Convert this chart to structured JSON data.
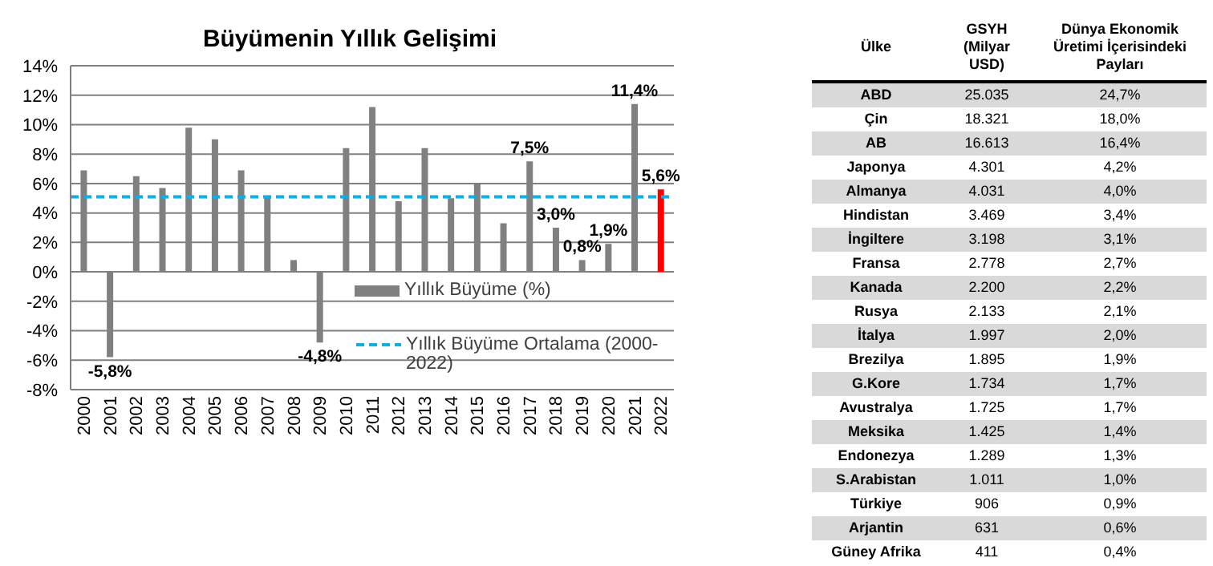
{
  "chart_data": [
    {
      "type": "bar",
      "title": "Büyümenin Yıllık Gelişimi",
      "categories": [
        "2000",
        "2001",
        "2002",
        "2003",
        "2004",
        "2005",
        "2006",
        "2007",
        "2008",
        "2009",
        "2010",
        "2011",
        "2012",
        "2013",
        "2014",
        "2015",
        "2016",
        "2017",
        "2018",
        "2019",
        "2020",
        "2021",
        "2022"
      ],
      "series": [
        {
          "name": "Yıllık Büyüme (%)",
          "color": "#808080",
          "colors": [
            "#808080",
            "#808080",
            "#808080",
            "#808080",
            "#808080",
            "#808080",
            "#808080",
            "#808080",
            "#808080",
            "#808080",
            "#808080",
            "#808080",
            "#808080",
            "#808080",
            "#808080",
            "#808080",
            "#808080",
            "#808080",
            "#808080",
            "#808080",
            "#808080",
            "#808080",
            "#ff0000"
          ],
          "values": [
            6.9,
            -5.8,
            6.5,
            5.7,
            9.8,
            9.0,
            6.9,
            5.1,
            0.8,
            -4.8,
            8.4,
            11.2,
            4.8,
            8.4,
            5.0,
            6.0,
            3.3,
            7.5,
            3.0,
            0.8,
            1.9,
            11.4,
            5.6
          ],
          "value_labels": [
            null,
            "-5,8%",
            null,
            null,
            null,
            null,
            null,
            null,
            null,
            "-4,8%",
            null,
            null,
            null,
            null,
            null,
            null,
            null,
            "7,5%",
            "3,0%",
            "0,8%",
            "1,9%",
            "11,4%",
            "5,6%"
          ]
        }
      ],
      "ref_lines": [
        {
          "axis": "y",
          "value": 5.1,
          "label": "Yıllık Büyüme Ortalama (2000-2022)",
          "color": "#00b0f0",
          "line_style": "dashed"
        }
      ],
      "ylim": [
        -8,
        14
      ],
      "yticks": [
        {
          "value": -8,
          "label": "-8%"
        },
        {
          "value": -6,
          "label": "-6%"
        },
        {
          "value": -4,
          "label": "-4%"
        },
        {
          "value": -2,
          "label": "-2%"
        },
        {
          "value": 0,
          "label": "0%"
        },
        {
          "value": 2,
          "label": "2%"
        },
        {
          "value": 4,
          "label": "4%"
        },
        {
          "value": 6,
          "label": "6%"
        },
        {
          "value": 8,
          "label": "8%"
        },
        {
          "value": 10,
          "label": "10%"
        },
        {
          "value": 12,
          "label": "12%"
        },
        {
          "value": 14,
          "label": "14%"
        }
      ],
      "grid": "y",
      "legend": "bottom right"
    },
    {
      "type": "heatmap",
      "ylabel": "Ülke",
      "categories": [
        "GSYH (Milyar USD)",
        "Dünya Ekonomik Üretimi İçerisindeki Payları"
      ],
      "y_categories": [
        "ABD",
        "Çin",
        "AB",
        "Japonya",
        "Almanya",
        "Hindistan",
        "İngiltere",
        "Fransa",
        "Kanada",
        "Rusya",
        "İtalya",
        "Brezilya",
        "G.Kore",
        "Avustralya",
        "Meksika",
        "Endonezya",
        "S.Arabistan",
        "Türkiye",
        "Arjantin",
        "Güney Afrika"
      ],
      "cells": [
        [
          25035,
          24.7
        ],
        [
          18321,
          18.0
        ],
        [
          16613,
          16.4
        ],
        [
          4301,
          4.2
        ],
        [
          4031,
          4.0
        ],
        [
          3469,
          3.4
        ],
        [
          3198,
          3.1
        ],
        [
          2778,
          2.7
        ],
        [
          2200,
          2.2
        ],
        [
          2133,
          2.1
        ],
        [
          1997,
          2.0
        ],
        [
          1895,
          1.9
        ],
        [
          1734,
          1.7
        ],
        [
          1725,
          1.7
        ],
        [
          1425,
          1.4
        ],
        [
          1289,
          1.3
        ],
        [
          1011,
          1.0
        ],
        [
          906,
          0.9
        ],
        [
          631,
          0.6
        ],
        [
          411,
          0.4
        ]
      ],
      "cell_labels": [
        [
          "25.035",
          "24,7%"
        ],
        [
          "18.321",
          "18,0%"
        ],
        [
          "16.613",
          "16,4%"
        ],
        [
          "4.301",
          "4,2%"
        ],
        [
          "4.031",
          "4,0%"
        ],
        [
          "3.469",
          "3,4%"
        ],
        [
          "3.198",
          "3,1%"
        ],
        [
          "2.778",
          "2,7%"
        ],
        [
          "2.200",
          "2,2%"
        ],
        [
          "2.133",
          "2,1%"
        ],
        [
          "1.997",
          "2,0%"
        ],
        [
          "1.895",
          "1,9%"
        ],
        [
          "1.734",
          "1,7%"
        ],
        [
          "1.725",
          "1,7%"
        ],
        [
          "1.425",
          "1,4%"
        ],
        [
          "1.289",
          "1,3%"
        ],
        [
          "1.011",
          "1,0%"
        ],
        [
          "906",
          "0,9%"
        ],
        [
          "631",
          "0,6%"
        ],
        [
          "411",
          "0,4%"
        ]
      ]
    }
  ]
}
